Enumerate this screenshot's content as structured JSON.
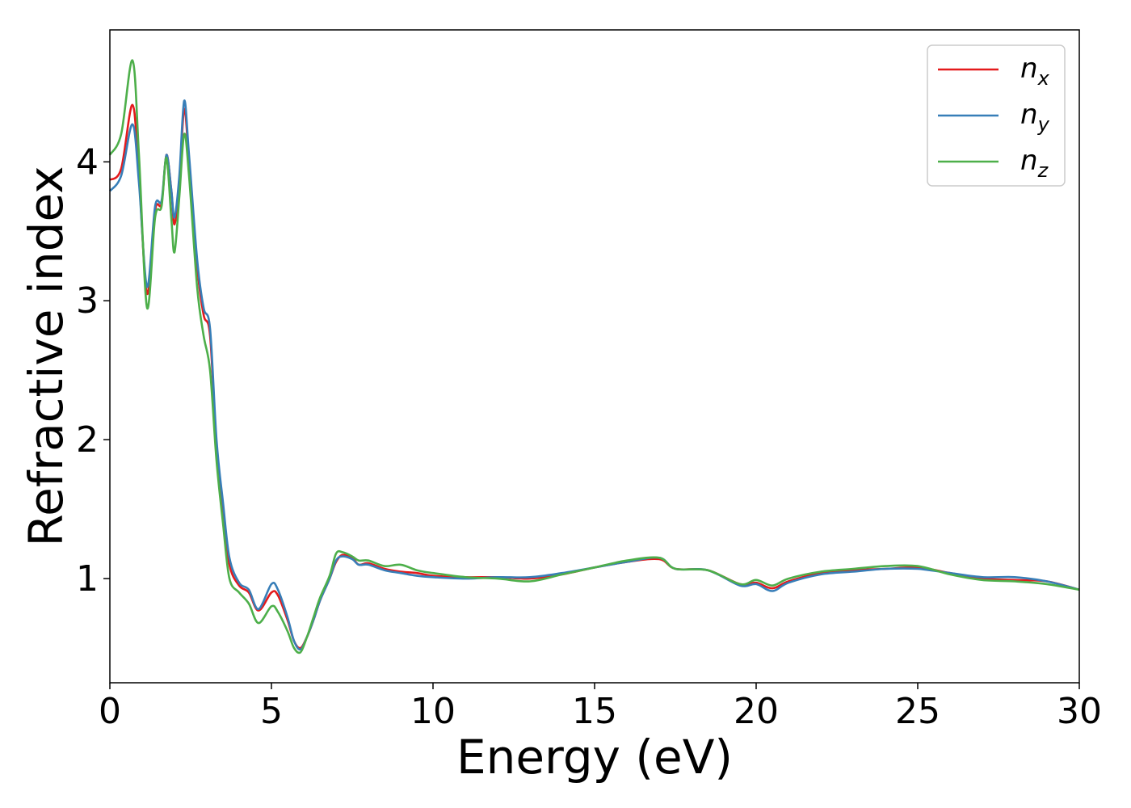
{
  "chart_data": {
    "type": "line",
    "xlabel": "Energy (eV)",
    "ylabel": "Refractive index",
    "xlim": [
      0,
      30
    ],
    "ylim": [
      0.25,
      4.95
    ],
    "xticks": [
      0,
      5,
      10,
      15,
      20,
      25,
      30
    ],
    "yticks": [
      1,
      2,
      3,
      4
    ],
    "grid": false,
    "legend_position": "top-right",
    "series": [
      {
        "name": "n",
        "subscript": "x",
        "color": "#e41a1c",
        "points": [
          [
            0,
            3.87
          ],
          [
            0.35,
            3.95
          ],
          [
            0.7,
            4.41
          ],
          [
            0.9,
            3.9
          ],
          [
            1.15,
            3.05
          ],
          [
            1.4,
            3.65
          ],
          [
            1.6,
            3.7
          ],
          [
            1.75,
            4.05
          ],
          [
            1.9,
            3.8
          ],
          [
            2.0,
            3.55
          ],
          [
            2.15,
            3.85
          ],
          [
            2.3,
            4.38
          ],
          [
            2.45,
            4.0
          ],
          [
            2.7,
            3.25
          ],
          [
            2.9,
            2.9
          ],
          [
            3.1,
            2.75
          ],
          [
            3.3,
            1.95
          ],
          [
            3.5,
            1.5
          ],
          [
            3.7,
            1.1
          ],
          [
            4.0,
            0.95
          ],
          [
            4.3,
            0.9
          ],
          [
            4.6,
            0.77
          ],
          [
            5.0,
            0.9
          ],
          [
            5.2,
            0.88
          ],
          [
            5.5,
            0.7
          ],
          [
            5.7,
            0.55
          ],
          [
            5.9,
            0.5
          ],
          [
            6.1,
            0.58
          ],
          [
            6.3,
            0.7
          ],
          [
            6.5,
            0.84
          ],
          [
            6.8,
            1.0
          ],
          [
            7.0,
            1.12
          ],
          [
            7.2,
            1.17
          ],
          [
            7.5,
            1.15
          ],
          [
            7.7,
            1.1
          ],
          [
            8.0,
            1.11
          ],
          [
            8.5,
            1.07
          ],
          [
            9.0,
            1.05
          ],
          [
            9.5,
            1.04
          ],
          [
            10,
            1.02
          ],
          [
            11,
            1.01
          ],
          [
            12,
            1.01
          ],
          [
            13,
            1.0
          ],
          [
            14,
            1.03
          ],
          [
            15,
            1.08
          ],
          [
            16,
            1.12
          ],
          [
            17,
            1.14
          ],
          [
            17.5,
            1.07
          ],
          [
            18.5,
            1.06
          ],
          [
            19.5,
            0.96
          ],
          [
            20,
            0.97
          ],
          [
            20.5,
            0.93
          ],
          [
            21,
            0.98
          ],
          [
            22,
            1.04
          ],
          [
            23,
            1.06
          ],
          [
            24,
            1.07
          ],
          [
            25,
            1.08
          ],
          [
            26,
            1.04
          ],
          [
            27,
            1.0
          ],
          [
            28,
            0.99
          ],
          [
            29,
            0.98
          ],
          [
            30,
            0.92
          ]
        ]
      },
      {
        "name": "n",
        "subscript": "y",
        "color": "#377eb8",
        "points": [
          [
            0,
            3.79
          ],
          [
            0.35,
            3.9
          ],
          [
            0.7,
            4.27
          ],
          [
            0.9,
            3.85
          ],
          [
            1.15,
            3.1
          ],
          [
            1.4,
            3.68
          ],
          [
            1.6,
            3.72
          ],
          [
            1.75,
            4.05
          ],
          [
            1.9,
            3.8
          ],
          [
            2.0,
            3.6
          ],
          [
            2.15,
            3.9
          ],
          [
            2.3,
            4.44
          ],
          [
            2.45,
            4.05
          ],
          [
            2.7,
            3.3
          ],
          [
            2.9,
            2.95
          ],
          [
            3.1,
            2.8
          ],
          [
            3.3,
            2.0
          ],
          [
            3.5,
            1.55
          ],
          [
            3.7,
            1.15
          ],
          [
            4.0,
            0.97
          ],
          [
            4.3,
            0.92
          ],
          [
            4.6,
            0.78
          ],
          [
            5.0,
            0.96
          ],
          [
            5.2,
            0.92
          ],
          [
            5.5,
            0.72
          ],
          [
            5.7,
            0.55
          ],
          [
            5.9,
            0.49
          ],
          [
            6.1,
            0.58
          ],
          [
            6.3,
            0.7
          ],
          [
            6.5,
            0.84
          ],
          [
            6.8,
            1.0
          ],
          [
            7.0,
            1.13
          ],
          [
            7.2,
            1.16
          ],
          [
            7.5,
            1.14
          ],
          [
            7.7,
            1.1
          ],
          [
            8.0,
            1.1
          ],
          [
            8.5,
            1.06
          ],
          [
            9.0,
            1.04
          ],
          [
            9.5,
            1.02
          ],
          [
            10,
            1.01
          ],
          [
            11,
            1.0
          ],
          [
            12,
            1.01
          ],
          [
            13,
            1.01
          ],
          [
            14,
            1.04
          ],
          [
            15,
            1.08
          ],
          [
            16,
            1.12
          ],
          [
            17,
            1.15
          ],
          [
            17.5,
            1.07
          ],
          [
            18.5,
            1.06
          ],
          [
            19.5,
            0.95
          ],
          [
            20,
            0.96
          ],
          [
            20.5,
            0.91
          ],
          [
            21,
            0.97
          ],
          [
            22,
            1.03
          ],
          [
            23,
            1.05
          ],
          [
            24,
            1.07
          ],
          [
            25,
            1.07
          ],
          [
            26,
            1.04
          ],
          [
            27,
            1.01
          ],
          [
            28,
            1.01
          ],
          [
            29,
            0.98
          ],
          [
            30,
            0.92
          ]
        ]
      },
      {
        "name": "n",
        "subscript": "z",
        "color": "#4daf4a",
        "points": [
          [
            0,
            4.05
          ],
          [
            0.35,
            4.2
          ],
          [
            0.7,
            4.73
          ],
          [
            0.9,
            4.05
          ],
          [
            1.15,
            2.95
          ],
          [
            1.4,
            3.6
          ],
          [
            1.6,
            3.68
          ],
          [
            1.75,
            4.03
          ],
          [
            1.9,
            3.6
          ],
          [
            2.0,
            3.35
          ],
          [
            2.15,
            3.75
          ],
          [
            2.3,
            4.2
          ],
          [
            2.45,
            3.9
          ],
          [
            2.7,
            3.1
          ],
          [
            2.9,
            2.75
          ],
          [
            3.1,
            2.5
          ],
          [
            3.3,
            1.85
          ],
          [
            3.5,
            1.4
          ],
          [
            3.7,
            1.0
          ],
          [
            4.0,
            0.9
          ],
          [
            4.3,
            0.82
          ],
          [
            4.6,
            0.68
          ],
          [
            5.0,
            0.8
          ],
          [
            5.2,
            0.76
          ],
          [
            5.5,
            0.62
          ],
          [
            5.7,
            0.5
          ],
          [
            5.9,
            0.47
          ],
          [
            6.1,
            0.58
          ],
          [
            6.3,
            0.72
          ],
          [
            6.5,
            0.86
          ],
          [
            6.8,
            1.02
          ],
          [
            7.0,
            1.18
          ],
          [
            7.2,
            1.19
          ],
          [
            7.5,
            1.16
          ],
          [
            7.7,
            1.13
          ],
          [
            8.0,
            1.13
          ],
          [
            8.5,
            1.09
          ],
          [
            9.0,
            1.1
          ],
          [
            9.5,
            1.06
          ],
          [
            10,
            1.04
          ],
          [
            11,
            1.01
          ],
          [
            12,
            1.0
          ],
          [
            13,
            0.98
          ],
          [
            14,
            1.03
          ],
          [
            15,
            1.08
          ],
          [
            16,
            1.13
          ],
          [
            17,
            1.15
          ],
          [
            17.5,
            1.07
          ],
          [
            18.5,
            1.06
          ],
          [
            19.5,
            0.96
          ],
          [
            20,
            0.99
          ],
          [
            20.5,
            0.95
          ],
          [
            21,
            1.0
          ],
          [
            22,
            1.05
          ],
          [
            23,
            1.07
          ],
          [
            24,
            1.09
          ],
          [
            25,
            1.09
          ],
          [
            26,
            1.03
          ],
          [
            27,
            0.99
          ],
          [
            28,
            0.98
          ],
          [
            29,
            0.96
          ],
          [
            30,
            0.92
          ]
        ]
      }
    ]
  }
}
